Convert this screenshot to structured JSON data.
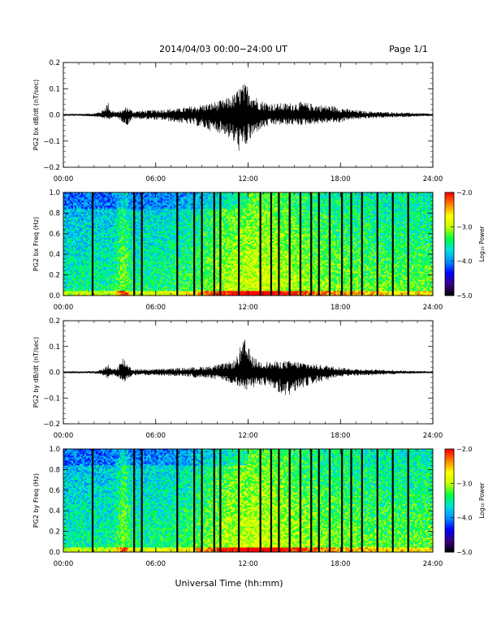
{
  "header": {
    "title": "2014/04/03  00:00−24:00 UT",
    "page": "Page 1/1"
  },
  "footer": {
    "xlabel": "Universal Time (hh:mm)"
  },
  "colors": {
    "trace": "#000000",
    "colormap": [
      "#000000",
      "#3a0080",
      "#0000ff",
      "#0090ff",
      "#00e0e0",
      "#00ff40",
      "#c8ff00",
      "#ffff00",
      "#ff8000",
      "#ff0000"
    ]
  },
  "chart_data": [
    {
      "type": "line",
      "ylabel": "PG2 bx dB/dt (nT/sec)",
      "xlim": [
        0,
        24
      ],
      "ylim": [
        -0.2,
        0.2
      ],
      "xticks": [
        "00:00",
        "06:00",
        "12:00",
        "18:00",
        "24:00"
      ],
      "yticks": [
        "−0.2",
        "−0.1",
        "0.0",
        "0.1",
        "0.2"
      ],
      "envelope": {
        "x": [
          0,
          1,
          2,
          2.5,
          2.9,
          3.1,
          3.5,
          3.9,
          4.1,
          4.5,
          5.5,
          6.5,
          7.5,
          8.5,
          9.5,
          10.5,
          11.2,
          11.5,
          11.8,
          12.0,
          12.3,
          12.7,
          13.5,
          14.5,
          15.5,
          16.5,
          17.5,
          18.0,
          18.5,
          19.5,
          20.5,
          21.5,
          22.5,
          23.5,
          24
        ],
        "up": [
          0.004,
          0.004,
          0.006,
          0.015,
          0.05,
          0.018,
          0.012,
          0.02,
          0.035,
          0.015,
          0.018,
          0.022,
          0.025,
          0.035,
          0.045,
          0.06,
          0.085,
          0.115,
          0.12,
          0.115,
          0.085,
          0.06,
          0.045,
          0.045,
          0.05,
          0.04,
          0.035,
          0.03,
          0.022,
          0.015,
          0.012,
          0.01,
          0.008,
          0.006,
          0.004
        ],
        "down": [
          -0.004,
          -0.004,
          -0.006,
          -0.012,
          -0.02,
          -0.012,
          -0.012,
          -0.03,
          -0.045,
          -0.015,
          -0.018,
          -0.022,
          -0.03,
          -0.04,
          -0.06,
          -0.075,
          -0.12,
          -0.15,
          -0.13,
          -0.11,
          -0.09,
          -0.06,
          -0.04,
          -0.04,
          -0.04,
          -0.035,
          -0.03,
          -0.03,
          -0.02,
          -0.015,
          -0.012,
          -0.01,
          -0.008,
          -0.006,
          -0.004
        ]
      }
    },
    {
      "type": "heatmap",
      "ylabel": "PG2 bx Freq (Hz)",
      "xlim": [
        0,
        24
      ],
      "ylim": [
        0.0,
        1.0
      ],
      "xticks": [
        "00:00",
        "06:00",
        "12:00",
        "18:00",
        "24:00"
      ],
      "yticks": [
        "0.0",
        "0.2",
        "0.4",
        "0.6",
        "0.8",
        "1.0"
      ],
      "colorbar": {
        "label": "Log₁₀ Power",
        "range": [
          -5.0,
          -2.0
        ],
        "ticks": [
          "−5.0",
          "−4.0",
          "−3.0",
          "−2.0"
        ]
      },
      "gap_hours": [
        1.9,
        4.6,
        5.1,
        7.4,
        8.5,
        9.0,
        9.8,
        10.2,
        11.4,
        12.8,
        13.5,
        14.0,
        14.7,
        15.4,
        16.1,
        16.6,
        17.3,
        18.1,
        18.7,
        19.4,
        20.4,
        21.4,
        22.4
      ]
    },
    {
      "type": "line",
      "ylabel": "PG2 by dB/dt (nT/sec)",
      "xlim": [
        0,
        24
      ],
      "ylim": [
        -0.2,
        0.2
      ],
      "xticks": [
        "00:00",
        "06:00",
        "12:00",
        "18:00",
        "24:00"
      ],
      "yticks": [
        "−0.2",
        "−0.1",
        "0.0",
        "0.1",
        "0.2"
      ],
      "envelope": {
        "x": [
          0,
          1,
          2,
          2.5,
          2.9,
          3.1,
          3.5,
          3.9,
          4.1,
          4.5,
          5.5,
          6.5,
          7.5,
          8.5,
          9.5,
          10.5,
          11.2,
          11.5,
          11.8,
          12.0,
          12.3,
          12.7,
          13.5,
          14.5,
          15.5,
          16.5,
          17.5,
          18.0,
          18.5,
          19.5,
          20.5,
          21.5,
          22.5,
          23.5,
          24
        ],
        "up": [
          0.004,
          0.004,
          0.005,
          0.01,
          0.03,
          0.012,
          0.02,
          0.06,
          0.04,
          0.012,
          0.012,
          0.014,
          0.016,
          0.02,
          0.025,
          0.035,
          0.05,
          0.1,
          0.13,
          0.1,
          0.06,
          0.045,
          0.04,
          0.045,
          0.04,
          0.03,
          0.025,
          0.02,
          0.015,
          0.012,
          0.01,
          0.008,
          0.006,
          0.005,
          0.004
        ],
        "down": [
          -0.004,
          -0.004,
          -0.005,
          -0.01,
          -0.025,
          -0.012,
          -0.02,
          -0.04,
          -0.03,
          -0.012,
          -0.012,
          -0.014,
          -0.016,
          -0.02,
          -0.025,
          -0.035,
          -0.05,
          -0.07,
          -0.075,
          -0.07,
          -0.06,
          -0.05,
          -0.06,
          -0.1,
          -0.06,
          -0.04,
          -0.03,
          -0.02,
          -0.015,
          -0.012,
          -0.01,
          -0.008,
          -0.006,
          -0.005,
          -0.004
        ]
      }
    },
    {
      "type": "heatmap",
      "ylabel": "PG2 by Freq (Hz)",
      "xlim": [
        0,
        24
      ],
      "ylim": [
        0.0,
        1.0
      ],
      "xticks": [
        "00:00",
        "06:00",
        "12:00",
        "18:00",
        "24:00"
      ],
      "yticks": [
        "0.0",
        "0.2",
        "0.4",
        "0.6",
        "0.8",
        "1.0"
      ],
      "colorbar": {
        "label": "Log₁₀ Power",
        "range": [
          -5.0,
          -2.0
        ],
        "ticks": [
          "−5.0",
          "−4.0",
          "−3.0",
          "−2.0"
        ]
      },
      "gap_hours": [
        1.9,
        4.6,
        5.1,
        7.4,
        8.5,
        9.0,
        9.8,
        10.2,
        11.4,
        12.8,
        13.5,
        14.0,
        14.7,
        15.4,
        16.1,
        16.6,
        17.3,
        18.1,
        18.7,
        19.4,
        20.4,
        21.4,
        22.4
      ]
    }
  ]
}
